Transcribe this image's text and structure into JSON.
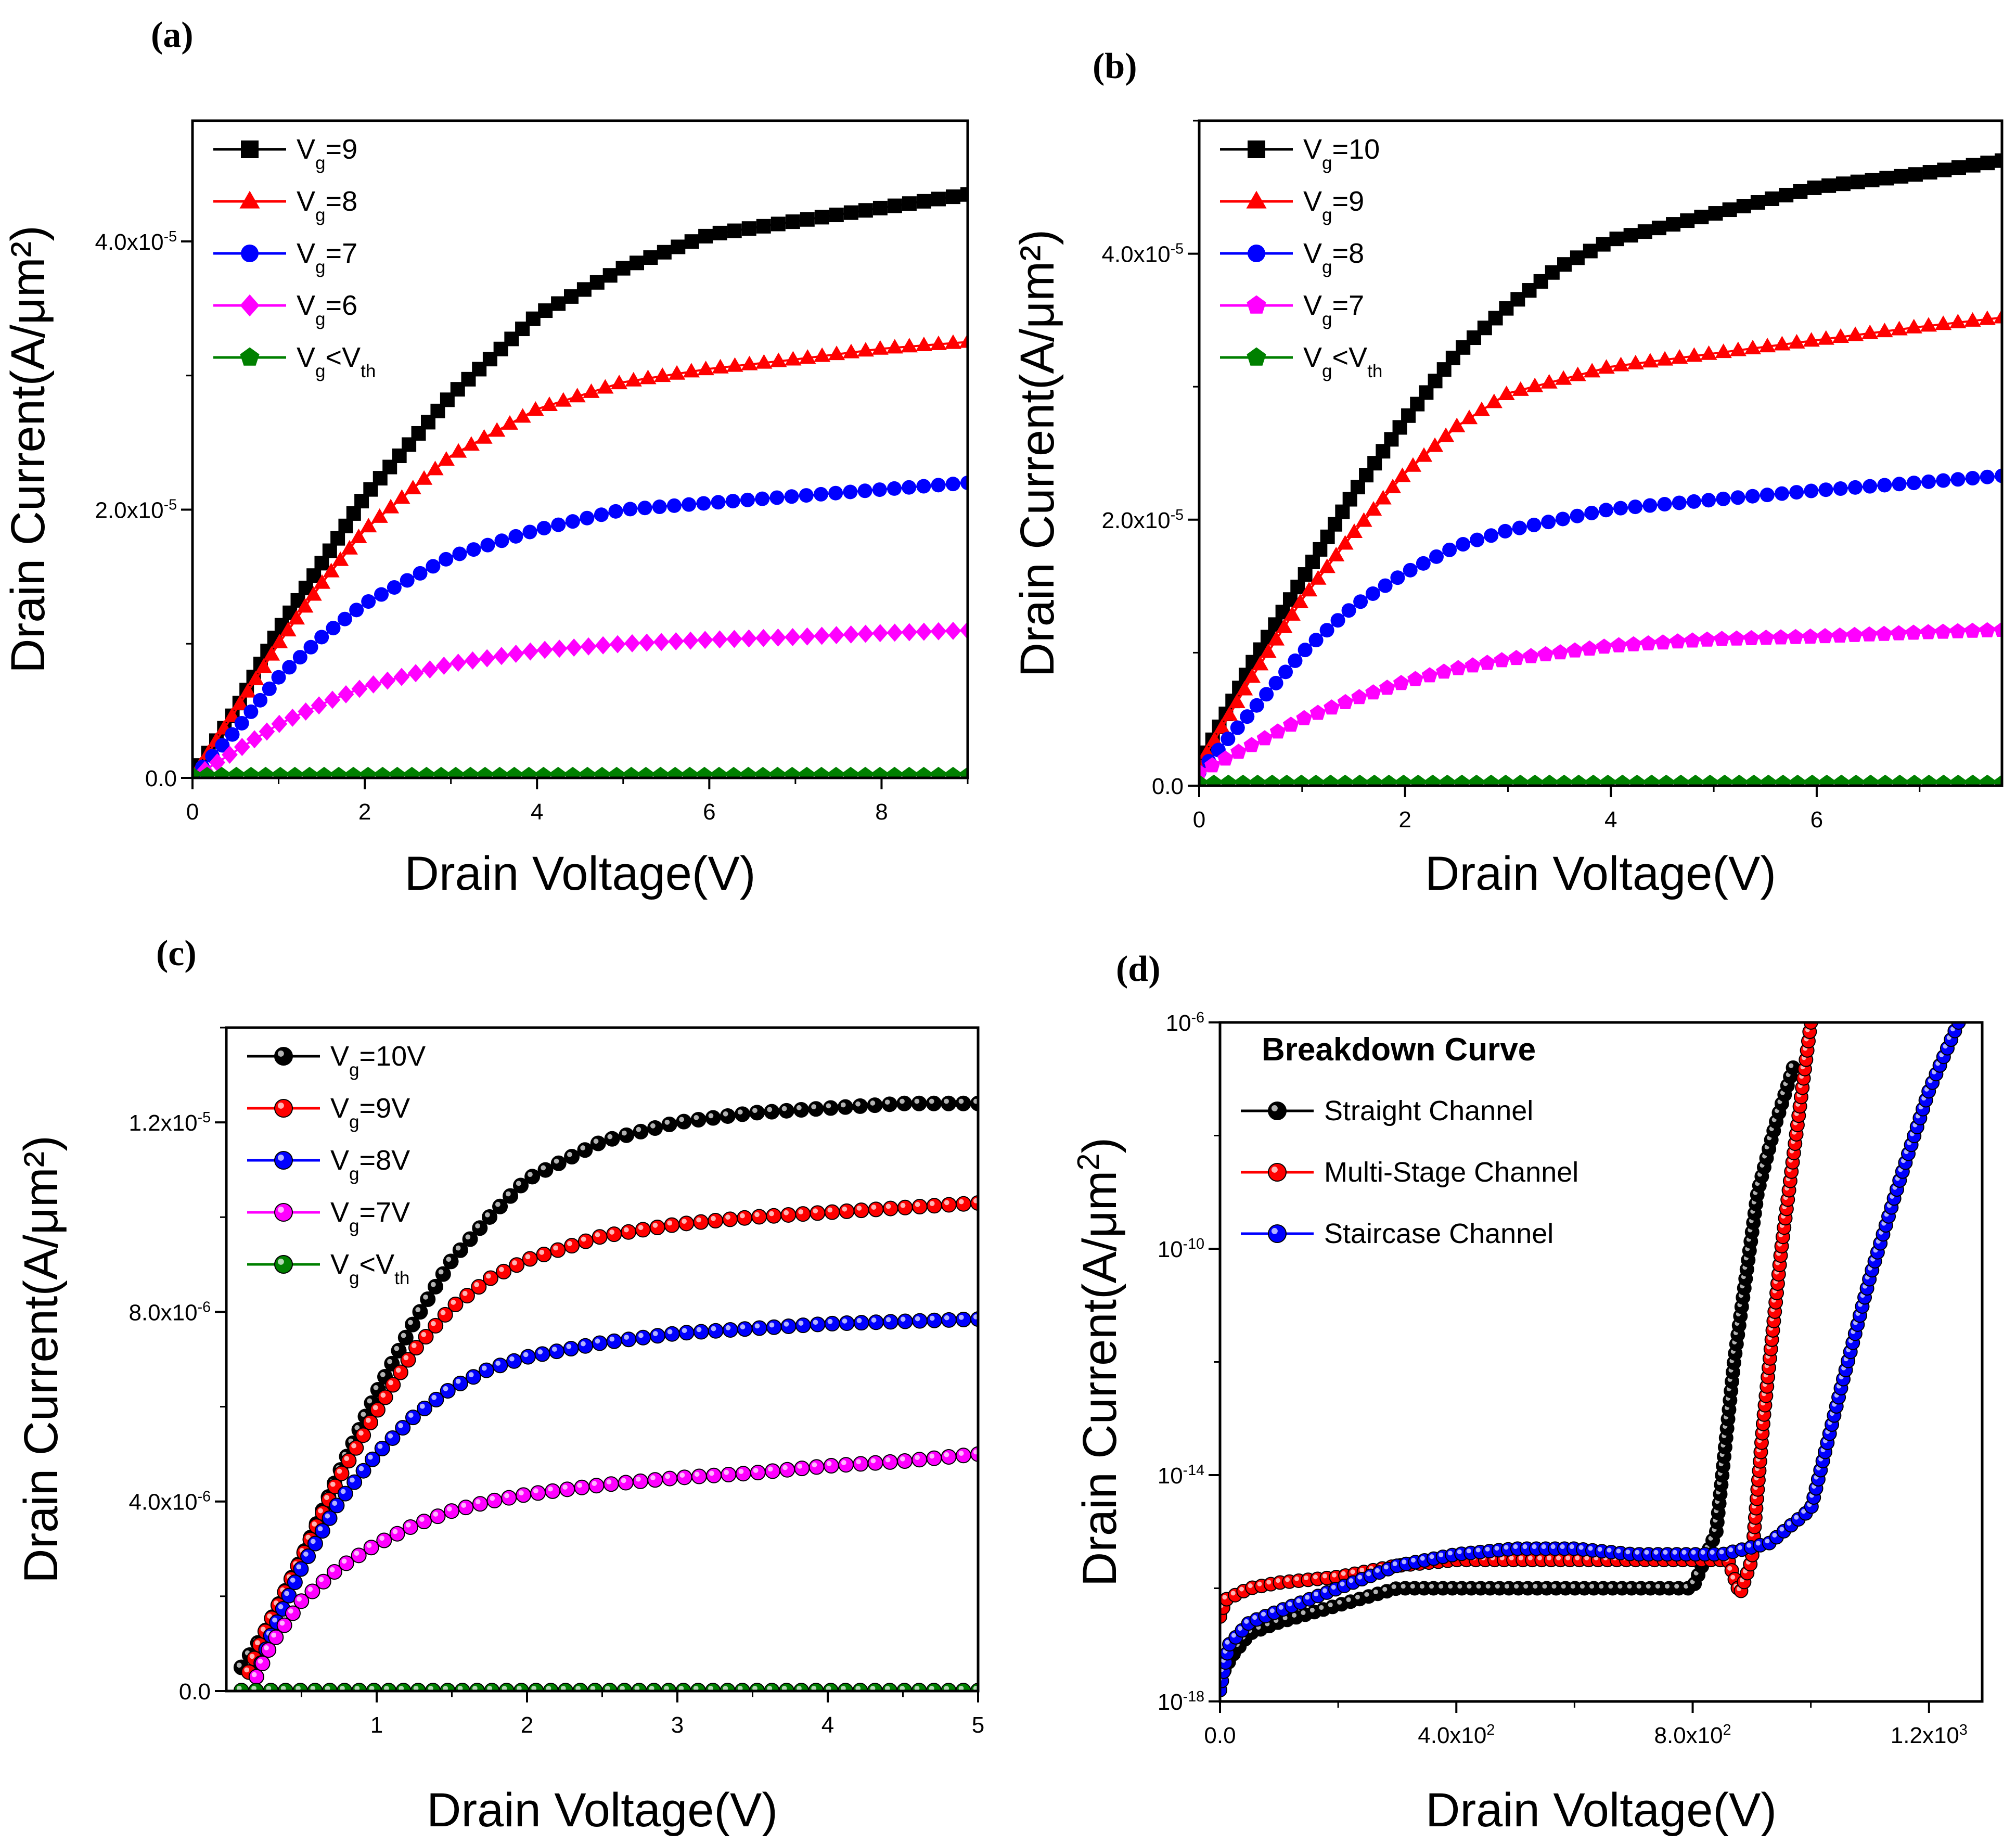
{
  "chart_data": [
    {
      "panel": "(a)",
      "type": "line",
      "xlabel": "Drain Voltage(V)",
      "ylabel": "Drain Current(A/μm²)",
      "xlim": [
        0,
        9
      ],
      "ylim": [
        0,
        4.9e-05
      ],
      "x_ticks": [
        0,
        2,
        4,
        6,
        8
      ],
      "x_tick_labels": [
        "0",
        "2",
        "4",
        "6",
        "8"
      ],
      "y_ticks": [
        0,
        2e-05,
        4e-05
      ],
      "y_tick_labels": [
        "0.0",
        "2.0x10",
        "4.0x10"
      ],
      "y_tick_exps": [
        "",
        "-5",
        "-5"
      ],
      "legend_placement": "top-left",
      "series": [
        {
          "name": "V",
          "sub": "g",
          "suffix": "=9",
          "marker": "square",
          "color": "#000000",
          "x": [
            0,
            0.5,
            1,
            1.5,
            2,
            3,
            4,
            5,
            6,
            7,
            8,
            9
          ],
          "y": [
            0,
            5e-06,
            1.1e-05,
            1.6e-05,
            2.1e-05,
            2.85e-05,
            3.45e-05,
            3.8e-05,
            4.05e-05,
            4.15e-05,
            4.25e-05,
            4.35e-05
          ]
        },
        {
          "name": "V",
          "sub": "g",
          "suffix": "=8",
          "marker": "triangle",
          "color": "#ff0000",
          "x": [
            0,
            0.5,
            1,
            1.5,
            2,
            3,
            4,
            5,
            6,
            7,
            8,
            9
          ],
          "y": [
            0,
            5e-06,
            1e-05,
            1.45e-05,
            1.85e-05,
            2.4e-05,
            2.75e-05,
            2.95e-05,
            3.05e-05,
            3.12e-05,
            3.2e-05,
            3.25e-05
          ]
        },
        {
          "name": "V",
          "sub": "g",
          "suffix": "=7",
          "marker": "circle",
          "color": "#0000ff",
          "x": [
            0,
            0.5,
            1,
            1.5,
            2,
            3,
            4,
            5,
            6,
            7,
            8,
            9
          ],
          "y": [
            0,
            3.5e-06,
            7.5e-06,
            1.05e-05,
            1.3e-05,
            1.65e-05,
            1.85e-05,
            2e-05,
            2.05e-05,
            2.1e-05,
            2.15e-05,
            2.2e-05
          ]
        },
        {
          "name": "V",
          "sub": "g",
          "suffix": "=6",
          "marker": "diamond",
          "color": "#ff00ff",
          "x": [
            0,
            0.5,
            1,
            1.5,
            2,
            3,
            4,
            5,
            6,
            7,
            8,
            9
          ],
          "y": [
            0,
            2e-06,
            4e-06,
            5.5e-06,
            6.8e-06,
            8.5e-06,
            9.5e-06,
            1e-05,
            1.03e-05,
            1.05e-05,
            1.08e-05,
            1.1e-05
          ]
        },
        {
          "name": "V",
          "sub": "g",
          "suffix": "<V",
          "suffix_sub": "th",
          "marker": "pentagon",
          "color": "#008000",
          "x": [
            0,
            1,
            2,
            3,
            4,
            5,
            6,
            7,
            8,
            9
          ],
          "y": [
            2e-07,
            2e-07,
            2e-07,
            2e-07,
            2e-07,
            2e-07,
            2e-07,
            2e-07,
            2e-07,
            2e-07
          ]
        }
      ]
    },
    {
      "panel": "(b)",
      "type": "line",
      "xlabel": "Drain Voltage(V)",
      "ylabel": "Drain Current(A/μm²)",
      "xlim": [
        0,
        7.8
      ],
      "ylim": [
        0,
        5e-05
      ],
      "x_ticks": [
        0,
        2,
        4,
        6
      ],
      "x_tick_labels": [
        "0",
        "2",
        "4",
        "6"
      ],
      "y_ticks": [
        0,
        2e-05,
        4e-05
      ],
      "y_tick_labels": [
        "0.0",
        "2.0x10",
        "4.0x10"
      ],
      "y_tick_exps": [
        "",
        "-5",
        "-5"
      ],
      "legend_placement": "top-left",
      "series": [
        {
          "name": "V",
          "sub": "g",
          "suffix": "=10",
          "marker": "square",
          "color": "#000000",
          "x": [
            0,
            0.5,
            1,
            1.5,
            2,
            2.5,
            3,
            3.5,
            4,
            5,
            5.5,
            6,
            7,
            7.8
          ],
          "y": [
            1.5e-06,
            9e-06,
            1.55e-05,
            2.2e-05,
            2.75e-05,
            3.25e-05,
            3.6e-05,
            3.9e-05,
            4.1e-05,
            4.3e-05,
            4.4e-05,
            4.5e-05,
            4.6e-05,
            4.7e-05
          ]
        },
        {
          "name": "V",
          "sub": "g",
          "suffix": "=9",
          "marker": "triangle",
          "color": "#ff0000",
          "x": [
            0,
            0.5,
            1,
            1.5,
            2,
            2.5,
            3,
            4,
            5,
            6,
            7,
            7.8
          ],
          "y": [
            1.5e-06,
            8e-06,
            1.4e-05,
            1.9e-05,
            2.35e-05,
            2.7e-05,
            2.95e-05,
            3.15e-05,
            3.25e-05,
            3.35e-05,
            3.45e-05,
            3.52e-05
          ]
        },
        {
          "name": "V",
          "sub": "g",
          "suffix": "=8",
          "marker": "circle",
          "color": "#0000ff",
          "x": [
            0,
            0.5,
            1,
            1.5,
            2,
            2.5,
            3,
            4,
            5,
            6,
            7,
            7.8
          ],
          "y": [
            1e-06,
            5.5e-06,
            1e-05,
            1.35e-05,
            1.6e-05,
            1.8e-05,
            1.92e-05,
            2.08e-05,
            2.15e-05,
            2.22e-05,
            2.28e-05,
            2.33e-05
          ]
        },
        {
          "name": "V",
          "sub": "g",
          "suffix": "=7",
          "marker": "pentagon",
          "color": "#ff00ff",
          "x": [
            0,
            0.5,
            1,
            1.5,
            2,
            2.5,
            3,
            4,
            5,
            6,
            7,
            7.8
          ],
          "y": [
            1e-06,
            3e-06,
            5e-06,
            6.5e-06,
            7.8e-06,
            8.8e-06,
            9.5e-06,
            1.05e-05,
            1.1e-05,
            1.12e-05,
            1.15e-05,
            1.17e-05
          ]
        },
        {
          "name": "V",
          "sub": "g",
          "suffix": "<V",
          "suffix_sub": "th",
          "marker": "pentagon",
          "color": "#008000",
          "x": [
            0,
            1,
            2,
            3,
            4,
            5,
            6,
            7,
            7.8
          ],
          "y": [
            2e-07,
            2e-07,
            2e-07,
            2e-07,
            2e-07,
            2e-07,
            2e-07,
            2e-07,
            2e-07
          ]
        }
      ]
    },
    {
      "panel": "(c)",
      "type": "line",
      "xlabel": "Drain Voltage(V)",
      "ylabel": "Drain Current(A/μm²)",
      "xlim": [
        0,
        5
      ],
      "ylim": [
        0,
        1.4e-05
      ],
      "x_ticks": [
        1,
        2,
        3,
        4,
        5
      ],
      "x_tick_labels": [
        "1",
        "2",
        "3",
        "4",
        "5"
      ],
      "y_ticks": [
        0,
        4e-06,
        8e-06,
        1.2e-05
      ],
      "y_tick_labels": [
        "0.0",
        "4.0x10",
        "8.0x10",
        "1.2x10"
      ],
      "y_tick_exps": [
        "",
        "-6",
        "-6",
        "-5"
      ],
      "legend_placement": "top-left",
      "series": [
        {
          "name": "V",
          "sub": "g",
          "suffix": "=10V",
          "marker": "circle",
          "color": "#000000",
          "x": [
            0.1,
            0.25,
            0.5,
            0.75,
            1,
            1.25,
            1.5,
            1.75,
            2,
            2.5,
            3,
            3.5,
            4,
            4.5,
            5
          ],
          "y": [
            5e-07,
            1.2e-06,
            2.8e-06,
            4.6e-06,
            6.3e-06,
            7.8e-06,
            9.1e-06,
            1e-05,
            1.08e-05,
            1.16e-05,
            1.2e-05,
            1.22e-05,
            1.23e-05,
            1.24e-05,
            1.24e-05
          ]
        },
        {
          "name": "V",
          "sub": "g",
          "suffix": "=9V",
          "marker": "circle",
          "color": "#ff0000",
          "x": [
            0.15,
            0.25,
            0.5,
            0.75,
            1,
            1.25,
            1.5,
            1.75,
            2,
            2.5,
            3,
            3.5,
            4,
            4.5,
            5
          ],
          "y": [
            4e-07,
            1.2e-06,
            2.8e-06,
            4.5e-06,
            5.9e-06,
            7.2e-06,
            8.1e-06,
            8.7e-06,
            9.1e-06,
            9.6e-06,
            9.85e-06,
            1e-05,
            1.01e-05,
            1.02e-05,
            1.03e-05
          ]
        },
        {
          "name": "V",
          "sub": "g",
          "suffix": "=8V",
          "marker": "circle",
          "color": "#0000ff",
          "x": [
            0.2,
            0.3,
            0.5,
            0.75,
            1,
            1.25,
            1.5,
            1.75,
            2,
            2.5,
            3,
            3.5,
            4,
            4.5,
            5
          ],
          "y": [
            3e-07,
            1.2e-06,
            2.6e-06,
            4e-06,
            5e-06,
            5.8e-06,
            6.4e-06,
            6.8e-06,
            7.05e-06,
            7.35e-06,
            7.55e-06,
            7.65e-06,
            7.75e-06,
            7.8e-06,
            7.85e-06
          ]
        },
        {
          "name": "V",
          "sub": "g",
          "suffix": "=7V",
          "marker": "circle",
          "color": "#ff00ff",
          "x": [
            0.2,
            0.3,
            0.5,
            0.75,
            1,
            1.25,
            1.5,
            1.75,
            2,
            2.5,
            3,
            3.5,
            4,
            4.5,
            5
          ],
          "y": [
            3e-07,
            1e-06,
            1.9e-06,
            2.6e-06,
            3.1e-06,
            3.5e-06,
            3.8e-06,
            4e-06,
            4.15e-06,
            4.35e-06,
            4.5e-06,
            4.6e-06,
            4.75e-06,
            4.85e-06,
            5e-06
          ]
        },
        {
          "name": "V",
          "sub": "g",
          "suffix": "<V",
          "suffix_sub": "th",
          "marker": "circle",
          "color": "#008000",
          "x": [
            0.1,
            0.5,
            1,
            1.5,
            2,
            2.5,
            3,
            3.5,
            4,
            4.5,
            5
          ],
          "y": [
            1e-08,
            1e-08,
            1e-08,
            1e-08,
            1e-08,
            1e-08,
            1e-08,
            1e-08,
            1e-08,
            1e-08,
            1e-08
          ]
        }
      ]
    },
    {
      "panel": "(d)",
      "type": "line",
      "log_y": true,
      "xlabel": "Drain Voltage(V)",
      "ylabel": "Drain Current(A/μm",
      "ylabel_sup": "2",
      "ylabel_close": ")",
      "xlim": [
        0,
        1290
      ],
      "ylim_exp": [
        -18,
        -6
      ],
      "x_ticks": [
        0,
        400,
        800,
        1200
      ],
      "x_tick_labels": [
        "0.0",
        "4.0x10",
        "8.0x10",
        "1.2x10"
      ],
      "x_tick_exps": [
        "",
        "2",
        "2",
        "3"
      ],
      "y_ticks_exp": [
        -18,
        -14,
        -10,
        -6
      ],
      "y_tick_labels": [
        "10",
        "10",
        "10",
        "10"
      ],
      "y_tick_exps": [
        "-18",
        "-14",
        "-10",
        "-6"
      ],
      "legend_title": "Breakdown Curve",
      "legend_placement": "top-left",
      "series": [
        {
          "name": "Straight Channel",
          "marker": "circle",
          "color": "#000000",
          "x": [
            0,
            20,
            50,
            100,
            200,
            300,
            400,
            500,
            600,
            700,
            800,
            840,
            870,
            890,
            910,
            940,
            970
          ],
          "y_exp": [
            -17.6,
            -17.2,
            -16.8,
            -16.6,
            -16.3,
            -16.0,
            -16.0,
            -16.0,
            -16.0,
            -16.0,
            -16.0,
            -15.0,
            -12.0,
            -10.5,
            -9.0,
            -7.8,
            -6.8
          ]
        },
        {
          "name": "Multi-Stage Channel",
          "marker": "circle",
          "color": "#ff0000",
          "x": [
            0,
            10,
            50,
            100,
            200,
            300,
            400,
            500,
            600,
            700,
            800,
            860,
            880,
            900,
            920,
            950,
            975,
            1000
          ],
          "y_exp": [
            -16.5,
            -16.2,
            -16.0,
            -15.9,
            -15.8,
            -15.6,
            -15.5,
            -15.5,
            -15.5,
            -15.5,
            -15.5,
            -15.5,
            -16.1,
            -15.5,
            -13.0,
            -10.0,
            -8.0,
            -6.0
          ]
        },
        {
          "name": "Staircase Channel",
          "marker": "circle",
          "color": "#0000ff",
          "x": [
            0,
            15,
            50,
            100,
            200,
            300,
            400,
            500,
            600,
            700,
            800,
            850,
            930,
            1000,
            1050,
            1100,
            1150,
            1200,
            1250
          ],
          "y_exp": [
            -17.8,
            -17.0,
            -16.6,
            -16.4,
            -16.0,
            -15.6,
            -15.4,
            -15.3,
            -15.3,
            -15.4,
            -15.4,
            -15.4,
            -15.2,
            -14.6,
            -12.5,
            -10.5,
            -8.8,
            -7.2,
            -6.0
          ]
        }
      ]
    }
  ]
}
